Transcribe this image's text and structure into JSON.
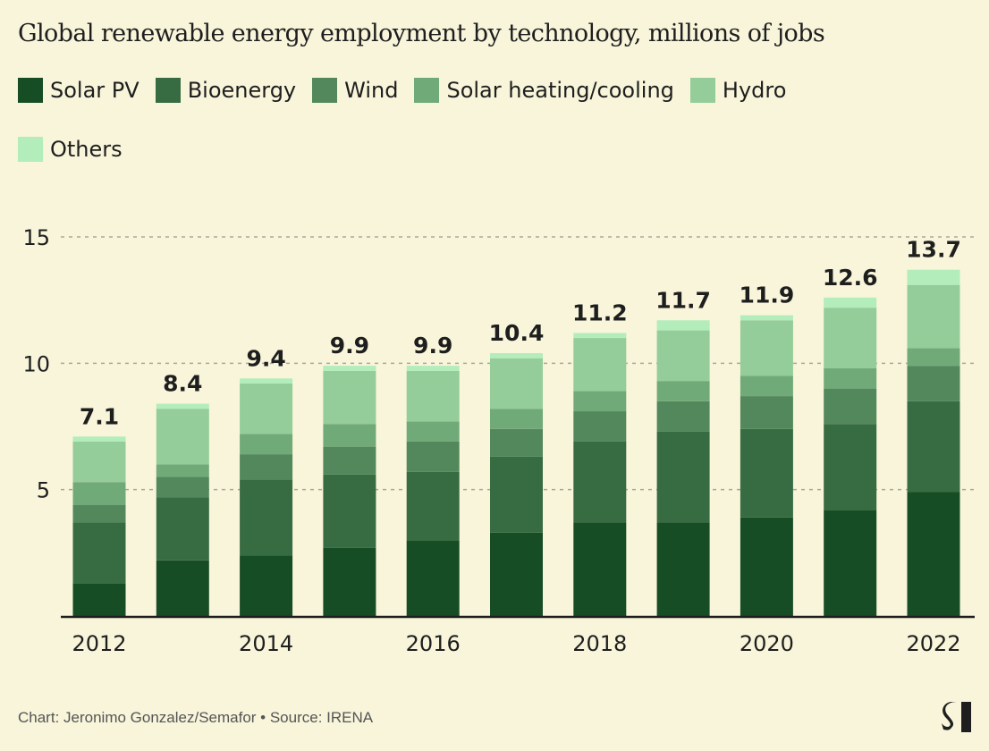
{
  "chart_data": {
    "type": "bar",
    "stacked": true,
    "title": "Global renewable energy employment by technology, millions of jobs",
    "xlabel": "",
    "ylabel": "",
    "ylim": [
      0,
      15
    ],
    "yticks": [
      5,
      10,
      15
    ],
    "grid": true,
    "legend_position": "top",
    "categories": [
      "2012",
      "2013",
      "2014",
      "2015",
      "2016",
      "2017",
      "2018",
      "2019",
      "2020",
      "2021",
      "2022"
    ],
    "xtick_labels": [
      "2012",
      "",
      "2014",
      "",
      "2016",
      "",
      "2018",
      "",
      "2020",
      "",
      "2022"
    ],
    "totals": [
      "7.1",
      "8.4",
      "9.4",
      "9.9",
      "9.9",
      "10.4",
      "11.2",
      "11.7",
      "11.9",
      "12.6",
      "13.7"
    ],
    "series": [
      {
        "name": "Solar PV",
        "color": "#174d24",
        "values": [
          1.3,
          2.2,
          2.4,
          2.7,
          3.0,
          3.3,
          3.7,
          3.7,
          3.9,
          4.2,
          4.9
        ]
      },
      {
        "name": "Bioenergy",
        "color": "#376b41",
        "values": [
          2.4,
          2.5,
          3.0,
          2.9,
          2.7,
          3.0,
          3.2,
          3.6,
          3.5,
          3.4,
          3.6
        ]
      },
      {
        "name": "Wind",
        "color": "#52885c",
        "values": [
          0.7,
          0.8,
          1.0,
          1.1,
          1.2,
          1.1,
          1.2,
          1.2,
          1.3,
          1.4,
          1.4
        ]
      },
      {
        "name": "Solar heating/cooling",
        "color": "#71aa79",
        "values": [
          0.9,
          0.5,
          0.8,
          0.9,
          0.8,
          0.8,
          0.8,
          0.8,
          0.8,
          0.8,
          0.7
        ]
      },
      {
        "name": "Hydro",
        "color": "#94cd99",
        "values": [
          1.6,
          2.2,
          2.0,
          2.1,
          2.0,
          2.0,
          2.1,
          2.0,
          2.2,
          2.4,
          2.5
        ]
      },
      {
        "name": "Others",
        "color": "#b2edbb",
        "values": [
          0.2,
          0.2,
          0.2,
          0.2,
          0.2,
          0.2,
          0.2,
          0.4,
          0.2,
          0.4,
          0.6
        ]
      }
    ]
  },
  "footer": "Chart: Jeronimo Gonzalez/Semafor • Source: IRENA",
  "logo": {
    "text": "S",
    "icon": "semafor-logo"
  },
  "colors": {
    "background": "#f8f5da",
    "text": "#1e1e1e",
    "grid": "#aaa89a"
  }
}
